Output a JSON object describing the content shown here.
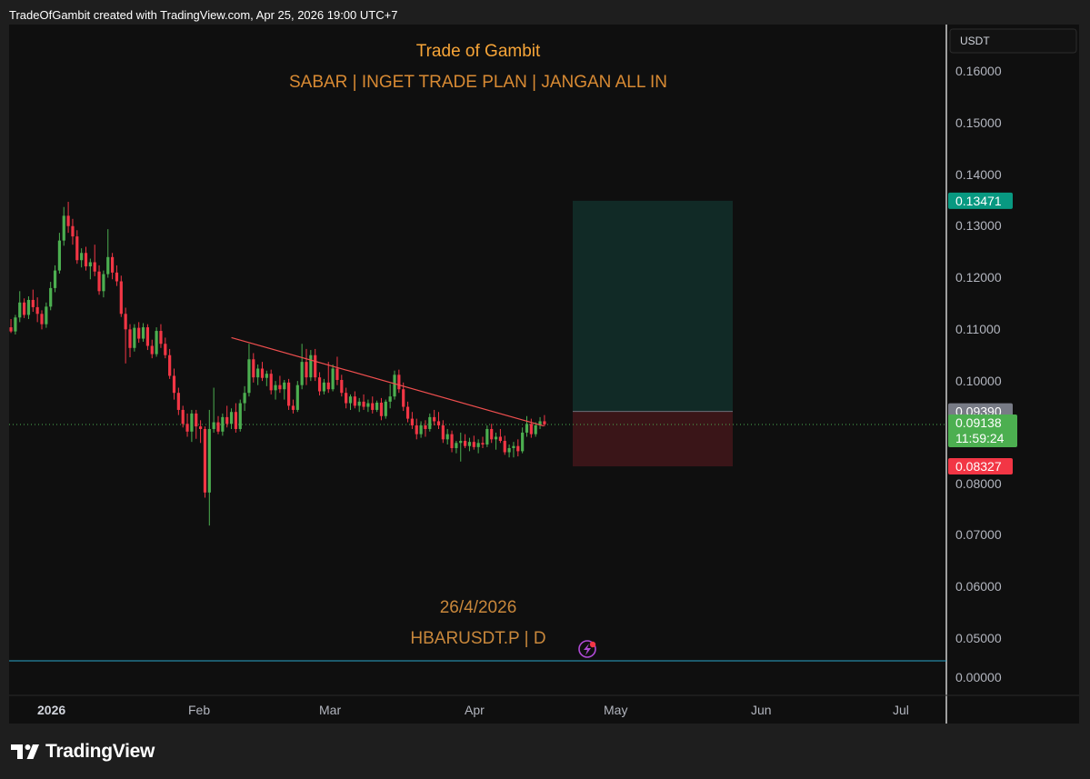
{
  "header": {
    "attribution": "TradeOfGambit created with TradingView.com, Apr 25, 2026 19:00 UTC+7"
  },
  "price_scale": {
    "currency": "USDT",
    "ticks": [
      "0.16000",
      "0.15000",
      "0.14000",
      "0.13000",
      "0.12000",
      "0.11000",
      "0.10000",
      "0.08000",
      "0.07000",
      "0.06000",
      "0.05000",
      "0.00000"
    ]
  },
  "time_axis": {
    "labels": [
      "2026",
      "Feb",
      "Mar",
      "Apr",
      "May",
      "Jun",
      "Jul"
    ]
  },
  "overlays": {
    "title": "Trade of Gambit",
    "subtitle": "SABAR | INGET TRADE PLAN | JANGAN ALL IN",
    "date": "26/4/2026",
    "symbol": "HBARUSDT.P | D"
  },
  "markers": {
    "target": {
      "label": "0.13471",
      "color": "#089981"
    },
    "entry": {
      "label": "0.09390",
      "color": "#787b86"
    },
    "last": {
      "label": "0.09138",
      "countdown": "11:59:24",
      "color": "#4caf50"
    },
    "stop": {
      "label": "0.08327",
      "color": "#f23645"
    }
  },
  "branding": {
    "name": "TradingView"
  },
  "colors": {
    "up": "#4caf50",
    "down": "#f23645",
    "trendline": "#f04f4f",
    "overlay_text": "#d88a33",
    "title_text": "#f7a538",
    "zero_line": "#2aa5c8"
  },
  "chart_data": {
    "type": "candlestick",
    "symbol": "HBARUSDT.P",
    "interval": "D",
    "y_axis": {
      "label": "USDT",
      "ticks": [
        0.16,
        0.15,
        0.14,
        0.13,
        0.12,
        0.11,
        0.1,
        0.09,
        0.08,
        0.07,
        0.06,
        0.05
      ]
    },
    "x_axis": {
      "ticks": [
        "2026",
        "Feb",
        "Mar",
        "Apr",
        "May",
        "Jun",
        "Jul"
      ]
    },
    "last_price": 0.09138,
    "position": {
      "entry": 0.0939,
      "target": 0.13471,
      "stop": 0.08327
    },
    "trendline": {
      "start_date": "2026-02-13",
      "start_price": 0.1082,
      "end_date": "2026-04-24",
      "end_price": 0.0911
    },
    "candles": [
      [
        "2025-12-23",
        0.1128,
        0.115,
        0.109,
        0.1098
      ],
      [
        "2025-12-24",
        0.1098,
        0.1115,
        0.1082,
        0.1102
      ],
      [
        "2025-12-25",
        0.1102,
        0.1118,
        0.1091,
        0.1094
      ],
      [
        "2025-12-26",
        0.1094,
        0.1126,
        0.1088,
        0.1121
      ],
      [
        "2025-12-27",
        0.1121,
        0.1172,
        0.1112,
        0.115
      ],
      [
        "2025-12-28",
        0.115,
        0.1158,
        0.112,
        0.1126
      ],
      [
        "2025-12-29",
        0.1126,
        0.1162,
        0.1118,
        0.1155
      ],
      [
        "2025-12-30",
        0.1155,
        0.1175,
        0.1132,
        0.1141
      ],
      [
        "2025-12-31",
        0.1141,
        0.116,
        0.1112,
        0.1128
      ],
      [
        "2026-01-01",
        0.1128,
        0.1135,
        0.1098,
        0.1108
      ],
      [
        "2026-01-02",
        0.1108,
        0.115,
        0.1101,
        0.1142
      ],
      [
        "2026-01-03",
        0.1142,
        0.119,
        0.1135,
        0.1178
      ],
      [
        "2026-01-04",
        0.1178,
        0.1222,
        0.117,
        0.1212
      ],
      [
        "2026-01-05",
        0.1212,
        0.1285,
        0.1206,
        0.127
      ],
      [
        "2026-01-06",
        0.127,
        0.1335,
        0.126,
        0.1318
      ],
      [
        "2026-01-07",
        0.1318,
        0.1345,
        0.1285,
        0.1298
      ],
      [
        "2026-01-08",
        0.1298,
        0.1312,
        0.1262,
        0.1278
      ],
      [
        "2026-01-09",
        0.1278,
        0.129,
        0.1225,
        0.1232
      ],
      [
        "2026-01-10",
        0.1232,
        0.1255,
        0.1218,
        0.1246
      ],
      [
        "2026-01-11",
        0.1246,
        0.1258,
        0.1212,
        0.122
      ],
      [
        "2026-01-12",
        0.122,
        0.1235,
        0.1195,
        0.1228
      ],
      [
        "2026-01-13",
        0.1228,
        0.1262,
        0.1201,
        0.121
      ],
      [
        "2026-01-14",
        0.121,
        0.1222,
        0.1165,
        0.1172
      ],
      [
        "2026-01-15",
        0.1172,
        0.1212,
        0.116,
        0.1205
      ],
      [
        "2026-01-16",
        0.1205,
        0.1292,
        0.1198,
        0.1238
      ],
      [
        "2026-01-17",
        0.1238,
        0.1246,
        0.1195,
        0.1208
      ],
      [
        "2026-01-18",
        0.1208,
        0.1222,
        0.1182,
        0.1191
      ],
      [
        "2026-01-19",
        0.1191,
        0.1202,
        0.1122,
        0.1128
      ],
      [
        "2026-01-20",
        0.1128,
        0.114,
        0.1032,
        0.1098
      ],
      [
        "2026-01-21",
        0.1098,
        0.1108,
        0.1044,
        0.1062
      ],
      [
        "2026-01-22",
        0.1062,
        0.1108,
        0.1055,
        0.1101
      ],
      [
        "2026-01-23",
        0.1101,
        0.1112,
        0.1072,
        0.108
      ],
      [
        "2026-01-24",
        0.108,
        0.111,
        0.1074,
        0.1102
      ],
      [
        "2026-01-25",
        0.1102,
        0.1108,
        0.1058,
        0.1066
      ],
      [
        "2026-01-26",
        0.1066,
        0.1078,
        0.1042,
        0.105
      ],
      [
        "2026-01-27",
        0.105,
        0.1102,
        0.1045,
        0.1095
      ],
      [
        "2026-01-28",
        0.1095,
        0.1108,
        0.1062,
        0.107
      ],
      [
        "2026-01-29",
        0.107,
        0.1082,
        0.1042,
        0.1048
      ],
      [
        "2026-01-30",
        0.1048,
        0.106,
        0.1002,
        0.1008
      ],
      [
        "2026-01-31",
        0.1008,
        0.1022,
        0.0962,
        0.0975
      ],
      [
        "2026-02-01",
        0.0975,
        0.0985,
        0.0932,
        0.0942
      ],
      [
        "2026-02-02",
        0.0942,
        0.095,
        0.0908,
        0.0915
      ],
      [
        "2026-02-03",
        0.0915,
        0.0935,
        0.089,
        0.09
      ],
      [
        "2026-02-04",
        0.09,
        0.0942,
        0.088,
        0.0935
      ],
      [
        "2026-02-05",
        0.0935,
        0.0942,
        0.0886,
        0.091
      ],
      [
        "2026-02-06",
        0.091,
        0.0922,
        0.0878,
        0.0905
      ],
      [
        "2026-02-07",
        0.0905,
        0.091,
        0.0772,
        0.0782
      ],
      [
        "2026-02-08",
        0.0782,
        0.0942,
        0.0718,
        0.0905
      ],
      [
        "2026-02-09",
        0.0905,
        0.0985,
        0.0898,
        0.0918
      ],
      [
        "2026-02-10",
        0.0918,
        0.093,
        0.0895,
        0.09
      ],
      [
        "2026-02-11",
        0.09,
        0.0935,
        0.0892,
        0.0928
      ],
      [
        "2026-02-12",
        0.0928,
        0.095,
        0.0908,
        0.0915
      ],
      [
        "2026-02-13",
        0.0915,
        0.0945,
        0.0905,
        0.0938
      ],
      [
        "2026-02-14",
        0.0938,
        0.0955,
        0.0898,
        0.0905
      ],
      [
        "2026-02-15",
        0.0905,
        0.0962,
        0.09,
        0.0955
      ],
      [
        "2026-02-16",
        0.0955,
        0.0988,
        0.094,
        0.0975
      ],
      [
        "2026-02-17",
        0.0975,
        0.107,
        0.0968,
        0.104
      ],
      [
        "2026-02-18",
        0.104,
        0.1052,
        0.0995,
        0.1005
      ],
      [
        "2026-02-19",
        0.1005,
        0.103,
        0.099,
        0.1022
      ],
      [
        "2026-02-20",
        0.1022,
        0.1035,
        0.0998,
        0.1004
      ],
      [
        "2026-02-21",
        0.1004,
        0.1018,
        0.0988,
        0.1012
      ],
      [
        "2026-02-22",
        0.1012,
        0.102,
        0.0972,
        0.098
      ],
      [
        "2026-02-23",
        0.098,
        0.0998,
        0.0962,
        0.099
      ],
      [
        "2026-02-24",
        0.099,
        0.1008,
        0.0975,
        0.0982
      ],
      [
        "2026-02-25",
        0.0982,
        0.1,
        0.0962,
        0.0995
      ],
      [
        "2026-02-26",
        0.0995,
        0.1002,
        0.0942,
        0.095
      ],
      [
        "2026-02-27",
        0.095,
        0.0962,
        0.0935,
        0.0942
      ],
      [
        "2026-02-28",
        0.0942,
        0.0998,
        0.0938,
        0.099
      ],
      [
        "2026-03-01",
        0.099,
        0.107,
        0.0982,
        0.1035
      ],
      [
        "2026-03-02",
        0.1035,
        0.106,
        0.099,
        0.1005
      ],
      [
        "2026-03-03",
        0.1005,
        0.1058,
        0.0998,
        0.1048
      ],
      [
        "2026-03-04",
        0.1048,
        0.106,
        0.0998,
        0.1005
      ],
      [
        "2026-03-05",
        0.1005,
        0.1015,
        0.097,
        0.0978
      ],
      [
        "2026-03-06",
        0.0978,
        0.1002,
        0.0972,
        0.0995
      ],
      [
        "2026-03-07",
        0.0995,
        0.1035,
        0.0975,
        0.0982
      ],
      [
        "2026-03-08",
        0.0982,
        0.103,
        0.0978,
        0.1022
      ],
      [
        "2026-03-09",
        0.1022,
        0.1045,
        0.099,
        0.1
      ],
      [
        "2026-03-10",
        0.1,
        0.101,
        0.0968,
        0.0975
      ],
      [
        "2026-03-11",
        0.0975,
        0.0985,
        0.0945,
        0.0955
      ],
      [
        "2026-03-12",
        0.0955,
        0.0972,
        0.0942,
        0.0968
      ],
      [
        "2026-03-13",
        0.0968,
        0.0978,
        0.0945,
        0.095
      ],
      [
        "2026-03-14",
        0.095,
        0.0965,
        0.0938,
        0.0958
      ],
      [
        "2026-03-15",
        0.0958,
        0.0972,
        0.0942,
        0.0948
      ],
      [
        "2026-03-16",
        0.0948,
        0.0962,
        0.0938,
        0.0955
      ],
      [
        "2026-03-17",
        0.0955,
        0.0968,
        0.0935,
        0.0942
      ],
      [
        "2026-03-18",
        0.0942,
        0.096,
        0.0938,
        0.0956
      ],
      [
        "2026-03-19",
        0.0956,
        0.0965,
        0.0922,
        0.093
      ],
      [
        "2026-03-20",
        0.093,
        0.0962,
        0.0925,
        0.0958
      ],
      [
        "2026-03-21",
        0.0958,
        0.0992,
        0.0945,
        0.0968
      ],
      [
        "2026-03-22",
        0.0968,
        0.1018,
        0.0962,
        0.101
      ],
      [
        "2026-03-23",
        0.101,
        0.102,
        0.0975,
        0.0982
      ],
      [
        "2026-03-24",
        0.0982,
        0.0995,
        0.094,
        0.0948
      ],
      [
        "2026-03-25",
        0.0948,
        0.0958,
        0.0918,
        0.0925
      ],
      [
        "2026-03-26",
        0.0925,
        0.0938,
        0.0905,
        0.0912
      ],
      [
        "2026-03-27",
        0.0912,
        0.0925,
        0.0885,
        0.0895
      ],
      [
        "2026-03-28",
        0.0895,
        0.092,
        0.0888,
        0.0912
      ],
      [
        "2026-03-29",
        0.0912,
        0.0922,
        0.089,
        0.0905
      ],
      [
        "2026-03-30",
        0.0905,
        0.0935,
        0.09,
        0.0928
      ],
      [
        "2026-03-31",
        0.0928,
        0.0942,
        0.0912,
        0.092
      ],
      [
        "2026-04-01",
        0.092,
        0.0938,
        0.0905,
        0.0912
      ],
      [
        "2026-04-02",
        0.0912,
        0.0922,
        0.0878,
        0.0885
      ],
      [
        "2026-04-03",
        0.0885,
        0.0905,
        0.0875,
        0.0895
      ],
      [
        "2026-04-04",
        0.0895,
        0.0902,
        0.086,
        0.0868
      ],
      [
        "2026-04-05",
        0.0868,
        0.0882,
        0.0858,
        0.0878
      ],
      [
        "2026-04-06",
        0.0878,
        0.0898,
        0.0842,
        0.0882
      ],
      [
        "2026-04-07",
        0.0882,
        0.0895,
        0.0868,
        0.0872
      ],
      [
        "2026-04-08",
        0.0872,
        0.0888,
        0.0862,
        0.088
      ],
      [
        "2026-04-09",
        0.088,
        0.0892,
        0.0865,
        0.087
      ],
      [
        "2026-04-10",
        0.087,
        0.0885,
        0.0858,
        0.0878
      ],
      [
        "2026-04-11",
        0.0878,
        0.089,
        0.0868,
        0.0875
      ],
      [
        "2026-04-12",
        0.0875,
        0.0912,
        0.087,
        0.0905
      ],
      [
        "2026-04-13",
        0.0905,
        0.0915,
        0.0878,
        0.0885
      ],
      [
        "2026-04-14",
        0.0885,
        0.0898,
        0.0865,
        0.089
      ],
      [
        "2026-04-15",
        0.089,
        0.0905,
        0.0878,
        0.0882
      ],
      [
        "2026-04-16",
        0.0882,
        0.0892,
        0.0855,
        0.086
      ],
      [
        "2026-04-17",
        0.086,
        0.0875,
        0.085,
        0.0868
      ],
      [
        "2026-04-18",
        0.0868,
        0.088,
        0.085,
        0.0872
      ],
      [
        "2026-04-19",
        0.0872,
        0.0885,
        0.0852,
        0.0862
      ],
      [
        "2026-04-20",
        0.0862,
        0.0908,
        0.0858,
        0.0898
      ],
      [
        "2026-04-21",
        0.0898,
        0.093,
        0.089,
        0.0915
      ],
      [
        "2026-04-22",
        0.0915,
        0.0925,
        0.0888,
        0.0895
      ],
      [
        "2026-04-23",
        0.0895,
        0.0918,
        0.089,
        0.0912
      ],
      [
        "2026-04-24",
        0.0912,
        0.0928,
        0.0905,
        0.092
      ],
      [
        "2026-04-25",
        0.092,
        0.0932,
        0.091,
        0.0914
      ]
    ]
  }
}
